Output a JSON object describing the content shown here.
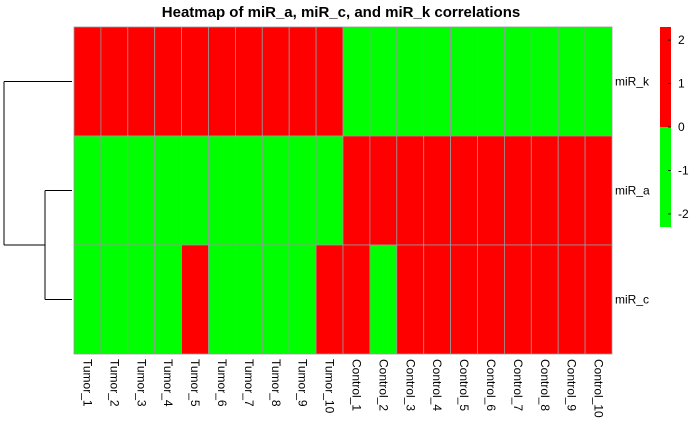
{
  "chart_data": {
    "type": "heatmap",
    "title": "Heatmap of miR_a, miR_c, and miR_k correlations",
    "columns": [
      "Tumor_1",
      "Tumor_2",
      "Tumor_3",
      "Tumor_4",
      "Tumor_5",
      "Tumor_6",
      "Tumor_7",
      "Tumor_8",
      "Tumor_9",
      "Tumor_10",
      "Control_1",
      "Control_2",
      "Control_3",
      "Control_4",
      "Control_5",
      "Control_6",
      "Control_7",
      "Control_8",
      "Control_9",
      "Control_10"
    ],
    "rows": [
      "miR_k",
      "miR_a",
      "miR_c"
    ],
    "values": [
      [
        1,
        1,
        1,
        1,
        1,
        1,
        1,
        1,
        1,
        1,
        -1,
        -1,
        -1,
        -1,
        -1,
        -1,
        -1,
        -1,
        -1,
        -1
      ],
      [
        -1,
        -1,
        -1,
        -1,
        -1,
        -1,
        -1,
        -1,
        -1,
        -1,
        1,
        1,
        1,
        1,
        1,
        1,
        1,
        1,
        1,
        1
      ],
      [
        -1,
        -1,
        -1,
        -1,
        1,
        -1,
        -1,
        -1,
        -1,
        1,
        1,
        -1,
        1,
        1,
        1,
        1,
        1,
        1,
        1,
        1
      ]
    ],
    "colors": {
      "positive": "#FF0000",
      "negative": "#00FF00",
      "grid": "#999999"
    },
    "dendrogram": {
      "side": "left",
      "merges": [
        [
          "miR_a",
          "miR_c"
        ],
        [
          "miR_k",
          "miR_a+miR_c"
        ]
      ]
    },
    "legend": {
      "placement": "right",
      "ticks": [
        "2",
        "1",
        "0",
        "-1",
        "-2"
      ],
      "range": [
        -2.3,
        2.3
      ],
      "color_breaks": [
        {
          "from": 0,
          "to": 2.3,
          "color": "#FF0000"
        },
        {
          "from": -2.3,
          "to": 0,
          "color": "#00FF00"
        }
      ]
    }
  }
}
